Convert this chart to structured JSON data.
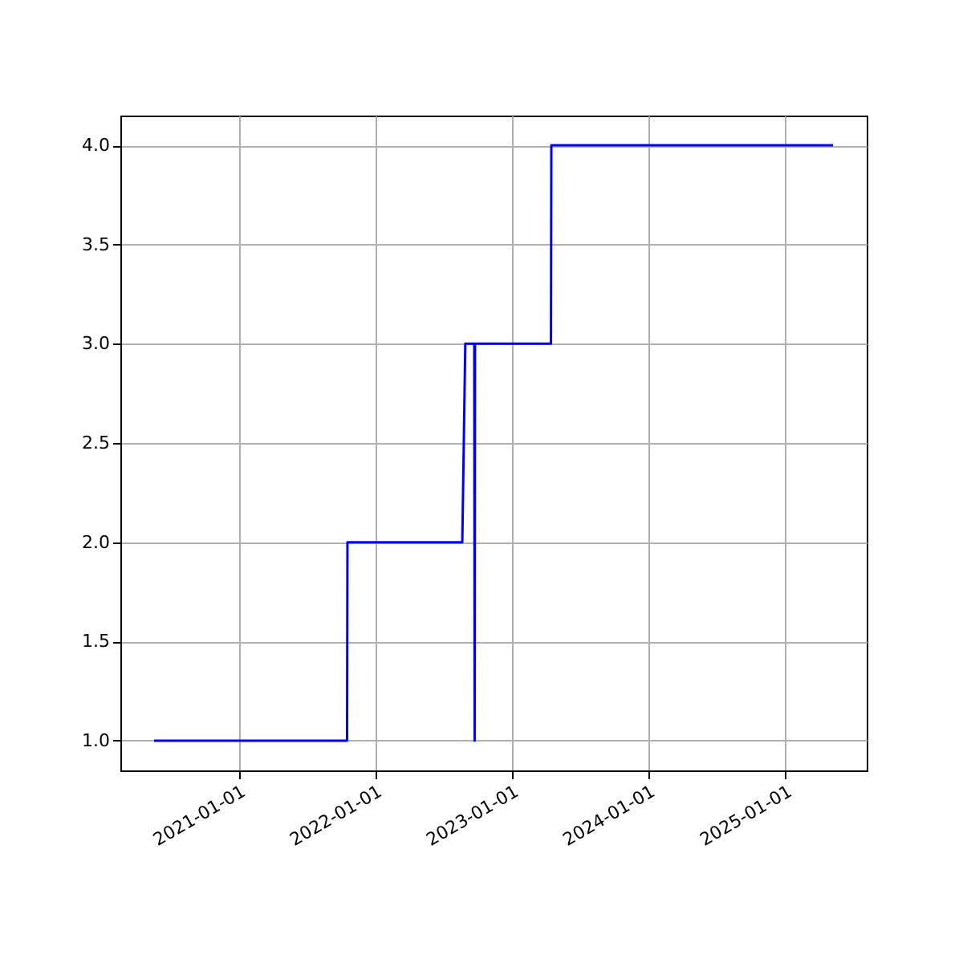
{
  "chart_data": {
    "type": "line",
    "x": [
      "2020-05-20",
      "2021-10-18",
      "2021-10-19",
      "2022-08-22",
      "2022-08-30",
      "2022-09-23",
      "2022-09-24",
      "2022-09-25",
      "2023-04-16",
      "2023-04-17",
      "2025-05-09"
    ],
    "series": [
      {
        "color": "#0000ff",
        "values": [
          1,
          1,
          2,
          2,
          3,
          3,
          1,
          3,
          3,
          4,
          4
        ]
      }
    ],
    "xlim": [
      "2020-02-20",
      "2025-08-07"
    ],
    "xticks": [
      "2021-01-01",
      "2022-01-01",
      "2023-01-01",
      "2024-01-01",
      "2025-01-01"
    ],
    "ylim": [
      0.85,
      4.15
    ],
    "yticks": [
      {
        "value": 1,
        "label": "1.0"
      },
      {
        "value": 1.5,
        "label": "1.5"
      },
      {
        "value": 2,
        "label": "2.0"
      },
      {
        "value": 2.5,
        "label": "2.5"
      },
      {
        "value": 3,
        "label": "3.0"
      },
      {
        "value": 3.5,
        "label": "3.5"
      },
      {
        "value": 4,
        "label": "4.0"
      }
    ],
    "grid": true,
    "marker": "none",
    "line_style": "solid"
  }
}
